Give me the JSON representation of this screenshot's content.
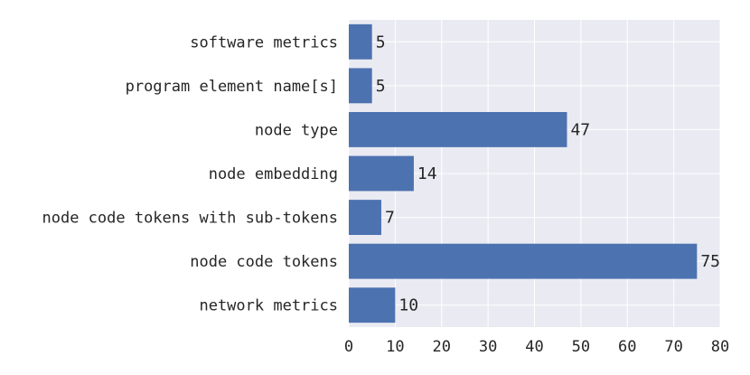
{
  "chart_data": {
    "type": "bar",
    "orientation": "horizontal",
    "categories": [
      "software metrics",
      "program element name[s]",
      "node type",
      "node embedding",
      "node code tokens with sub-tokens",
      "node code tokens",
      "network metrics"
    ],
    "values": [
      5,
      5,
      47,
      14,
      7,
      75,
      10
    ],
    "data_labels": [
      "5",
      "5",
      "47",
      "14",
      "7",
      "75",
      "10"
    ],
    "xlim": [
      0,
      80
    ],
    "xticks": [
      "0",
      "10",
      "20",
      "30",
      "40",
      "50",
      "60",
      "70",
      "80"
    ],
    "grid": true,
    "title": "",
    "xlabel": "",
    "ylabel": "",
    "colors": {
      "bar": "#4c72b0",
      "plot_background": "#eaeaf2",
      "grid": "#ffffff",
      "text": "#262626"
    }
  }
}
